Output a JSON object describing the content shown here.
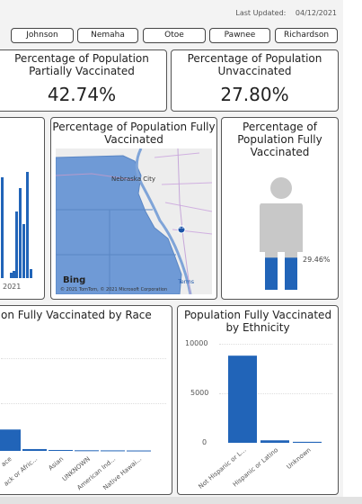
{
  "last_updated": {
    "label": "Last Updated:",
    "value": "04/12/2021"
  },
  "county_filters": [
    "Johnson",
    "Nemaha",
    "Otoe",
    "Pawnee",
    "Richardson"
  ],
  "kpi_partial": {
    "title": "Percentage of Population Partially Vaccinated",
    "value": "42.74%"
  },
  "kpi_unvacc": {
    "title": "Percentage of Population Unvaccinated",
    "value": "27.80%"
  },
  "left_partial_chart": {
    "tick_label": "2021"
  },
  "map_card": {
    "title": "Percentage of Population Fully Vaccinated",
    "city": "Nebraska City",
    "interstate": "29",
    "bing": "Bing",
    "attribution": "© 2021 TomTom, © 2021 Microsoft Corporation",
    "terms": "Terms"
  },
  "person_card": {
    "title": "Percentage of Population Fully Vaccinated",
    "value_label": "29.46%",
    "fill_fraction": 0.2946,
    "colors": {
      "filled": "#2164b8",
      "empty": "#c8c8c8"
    }
  },
  "race_card": {
    "title": "on Fully Vaccinated by Race",
    "categories": [
      "ace",
      "ack or Afric...",
      "Asian",
      "UNKNOWN",
      "American Ind...",
      "Native Hawai..."
    ]
  },
  "ethnicity_card": {
    "title": "Population Fully Vaccinated by Ethnicity"
  },
  "chart_data": [
    {
      "type": "bar",
      "title": "Population Fully Vaccinated by Ethnicity",
      "categories": [
        "Not Hispanic or L...",
        "Hispanic or Latino",
        "Unknown"
      ],
      "values": [
        8800,
        250,
        100
      ],
      "ylim": [
        0,
        10000
      ],
      "y_ticks": [
        "10000",
        "5000",
        "0"
      ],
      "grid": true,
      "color": "#2164b8"
    },
    {
      "type": "bar",
      "title": "on Fully Vaccinated by Race",
      "categories": [
        "ace",
        "ack or Afric...",
        "Asian",
        "UNKNOWN",
        "American Ind...",
        "Native Hawai..."
      ],
      "values": [
        2100,
        180,
        90,
        60,
        50,
        40
      ],
      "color": "#2164b8"
    }
  ]
}
